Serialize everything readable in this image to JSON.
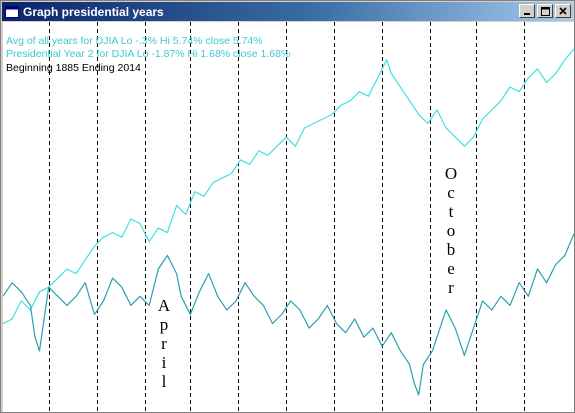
{
  "window": {
    "title": "Graph presidential years",
    "icon": "app-window-icon",
    "controls": [
      "minimize",
      "maximize",
      "close"
    ]
  },
  "legend": {
    "line1": "Avg of all years for DJIA  Lo -.3%  Hi 5.74%  close 5.74%",
    "line2": "Presidential Year 2 for DJIA  Lo -1.87%  Hi 1.68%  close 1.68%",
    "line3": "Beginning 1885  Ending  2014"
  },
  "colors": {
    "avg_line": "#40e0e0",
    "year2_line": "#2aa0b0",
    "legend_text": "#40c8d0",
    "gridline": "#000000"
  },
  "annotations": {
    "april": "April",
    "october": "October"
  },
  "chart_data": {
    "type": "line",
    "x_unit": "trading-day index within year",
    "x_range": [
      0,
      250
    ],
    "y_range": [
      -2.2,
      6.2
    ],
    "vertical_gridlines_at": [
      20,
      41,
      62,
      82,
      103,
      124,
      145,
      166,
      187,
      207,
      228
    ],
    "series": [
      {
        "name": "Avg of all years for DJIA",
        "points": [
          [
            0,
            -0.3
          ],
          [
            4,
            -0.2
          ],
          [
            8,
            0.2
          ],
          [
            12,
            0.0
          ],
          [
            16,
            0.4
          ],
          [
            20,
            0.5
          ],
          [
            24,
            0.7
          ],
          [
            28,
            0.9
          ],
          [
            32,
            0.8
          ],
          [
            36,
            1.1
          ],
          [
            40,
            1.4
          ],
          [
            44,
            1.6
          ],
          [
            48,
            1.7
          ],
          [
            52,
            1.6
          ],
          [
            56,
            2.0
          ],
          [
            60,
            1.9
          ],
          [
            64,
            1.5
          ],
          [
            68,
            1.8
          ],
          [
            72,
            1.7
          ],
          [
            76,
            2.3
          ],
          [
            80,
            2.1
          ],
          [
            84,
            2.6
          ],
          [
            88,
            2.5
          ],
          [
            92,
            2.8
          ],
          [
            96,
            2.9
          ],
          [
            100,
            3.0
          ],
          [
            104,
            3.3
          ],
          [
            108,
            3.2
          ],
          [
            112,
            3.5
          ],
          [
            116,
            3.4
          ],
          [
            120,
            3.6
          ],
          [
            124,
            3.8
          ],
          [
            128,
            3.6
          ],
          [
            132,
            4.0
          ],
          [
            136,
            4.1
          ],
          [
            140,
            4.2
          ],
          [
            144,
            4.3
          ],
          [
            148,
            4.5
          ],
          [
            152,
            4.6
          ],
          [
            156,
            4.8
          ],
          [
            160,
            4.7
          ],
          [
            164,
            5.1
          ],
          [
            168,
            5.5
          ],
          [
            170,
            5.2
          ],
          [
            174,
            4.9
          ],
          [
            178,
            4.6
          ],
          [
            182,
            4.3
          ],
          [
            186,
            4.1
          ],
          [
            190,
            4.4
          ],
          [
            194,
            4.0
          ],
          [
            198,
            3.8
          ],
          [
            202,
            3.6
          ],
          [
            206,
            3.8
          ],
          [
            210,
            4.2
          ],
          [
            214,
            4.4
          ],
          [
            218,
            4.6
          ],
          [
            222,
            4.9
          ],
          [
            226,
            4.8
          ],
          [
            230,
            5.1
          ],
          [
            234,
            5.3
          ],
          [
            238,
            5.0
          ],
          [
            242,
            5.2
          ],
          [
            246,
            5.5
          ],
          [
            250,
            5.74
          ]
        ]
      },
      {
        "name": "Presidential Year 2 for DJIA",
        "points": [
          [
            0,
            0.3
          ],
          [
            4,
            0.6
          ],
          [
            8,
            0.4
          ],
          [
            12,
            0.1
          ],
          [
            14,
            -0.6
          ],
          [
            16,
            -0.9
          ],
          [
            18,
            -0.2
          ],
          [
            20,
            0.5
          ],
          [
            24,
            0.3
          ],
          [
            28,
            0.1
          ],
          [
            32,
            0.3
          ],
          [
            36,
            0.6
          ],
          [
            40,
            -0.1
          ],
          [
            44,
            0.2
          ],
          [
            48,
            0.7
          ],
          [
            52,
            0.5
          ],
          [
            56,
            0.1
          ],
          [
            60,
            0.3
          ],
          [
            64,
            0.1
          ],
          [
            68,
            0.9
          ],
          [
            72,
            1.2
          ],
          [
            76,
            0.8
          ],
          [
            78,
            0.3
          ],
          [
            82,
            -0.1
          ],
          [
            86,
            0.4
          ],
          [
            90,
            0.8
          ],
          [
            94,
            0.3
          ],
          [
            98,
            0.0
          ],
          [
            102,
            0.2
          ],
          [
            106,
            0.6
          ],
          [
            110,
            0.3
          ],
          [
            114,
            0.1
          ],
          [
            118,
            -0.3
          ],
          [
            122,
            -0.1
          ],
          [
            126,
            0.2
          ],
          [
            130,
            0.0
          ],
          [
            134,
            -0.4
          ],
          [
            138,
            -0.2
          ],
          [
            142,
            0.1
          ],
          [
            146,
            -0.3
          ],
          [
            150,
            -0.5
          ],
          [
            154,
            -0.2
          ],
          [
            158,
            -0.6
          ],
          [
            162,
            -0.4
          ],
          [
            166,
            -0.8
          ],
          [
            170,
            -0.5
          ],
          [
            174,
            -0.9
          ],
          [
            178,
            -1.2
          ],
          [
            180,
            -1.6
          ],
          [
            182,
            -1.87
          ],
          [
            184,
            -1.2
          ],
          [
            188,
            -0.9
          ],
          [
            192,
            -0.3
          ],
          [
            194,
            0.0
          ],
          [
            198,
            -0.4
          ],
          [
            200,
            -0.7
          ],
          [
            202,
            -1.0
          ],
          [
            206,
            -0.4
          ],
          [
            210,
            0.2
          ],
          [
            214,
            0.0
          ],
          [
            218,
            0.3
          ],
          [
            222,
            0.1
          ],
          [
            226,
            0.6
          ],
          [
            230,
            0.3
          ],
          [
            234,
            0.9
          ],
          [
            238,
            0.6
          ],
          [
            242,
            1.0
          ],
          [
            246,
            1.2
          ],
          [
            250,
            1.68
          ]
        ]
      }
    ]
  }
}
